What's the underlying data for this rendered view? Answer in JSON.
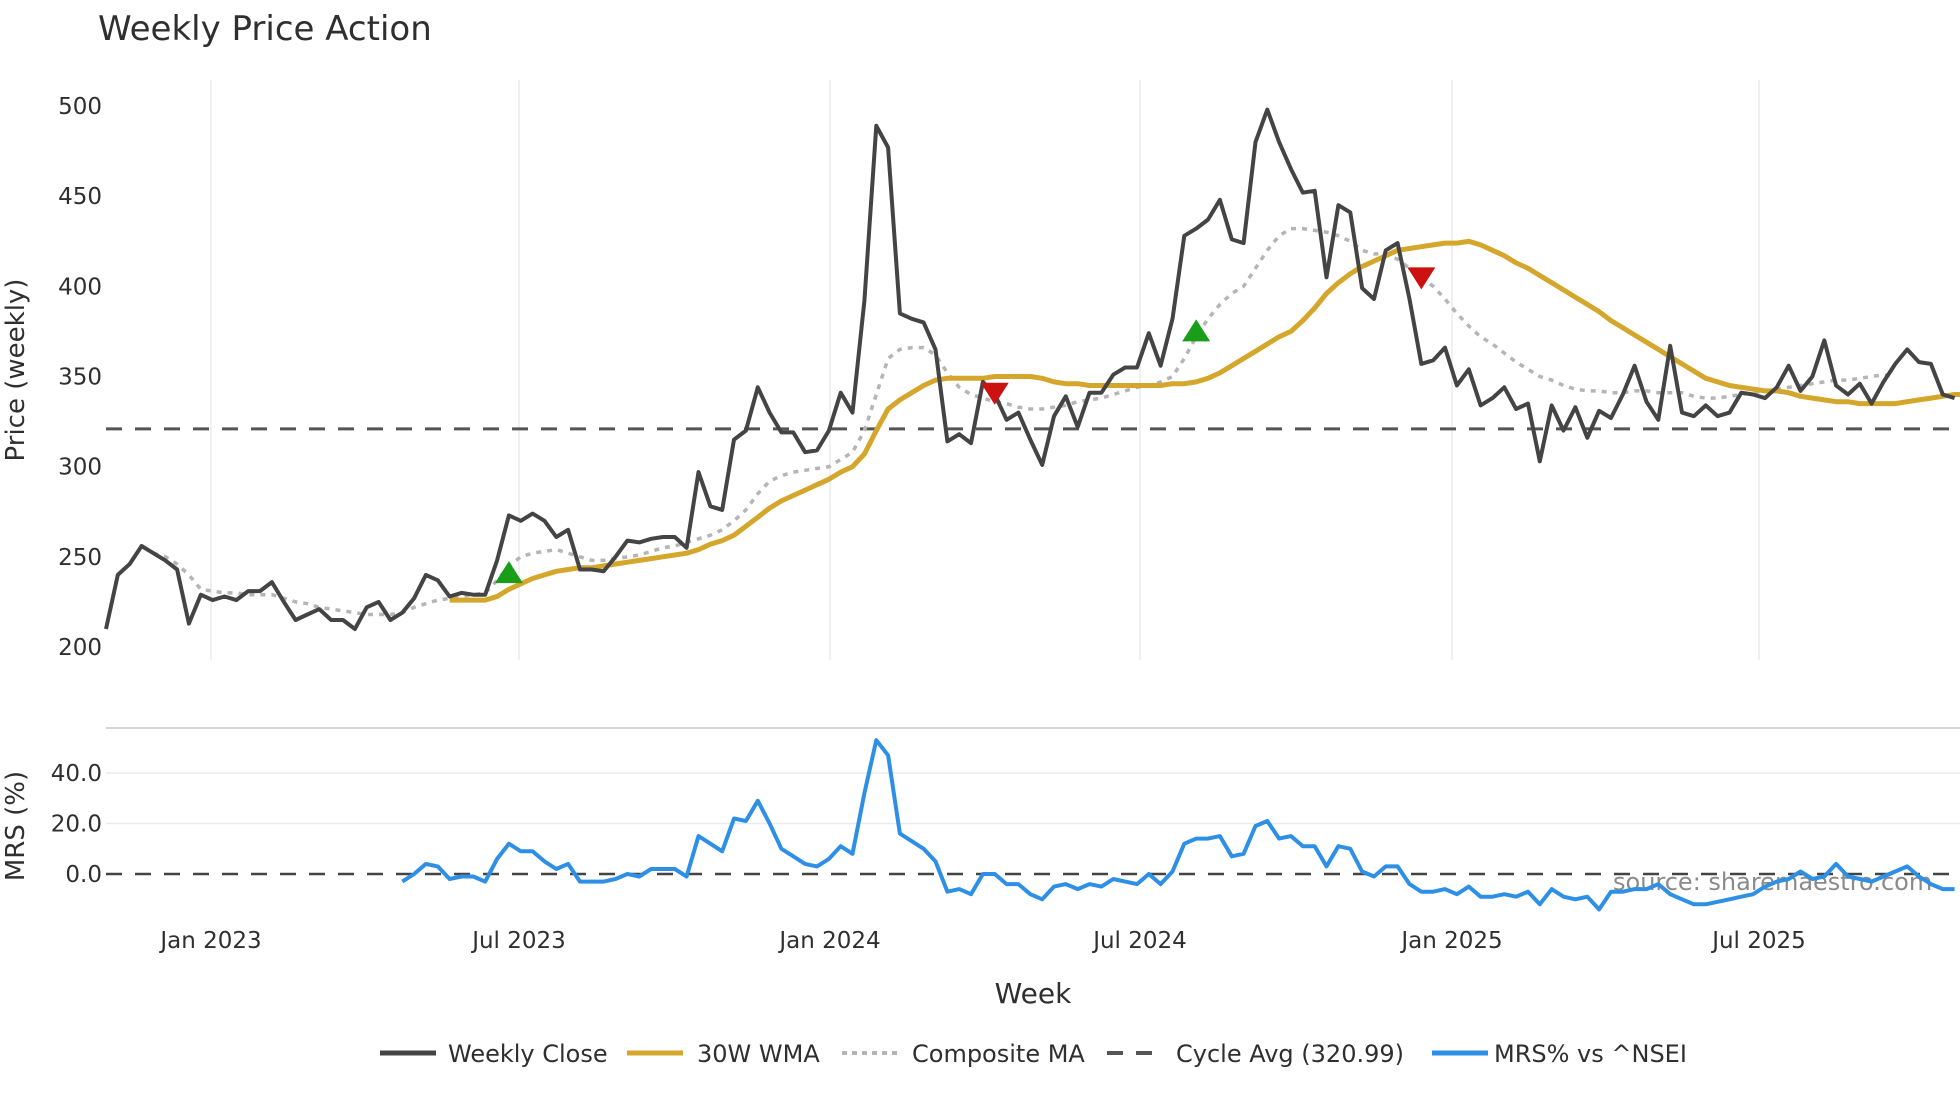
{
  "title": "Weekly Price Action",
  "source": "source: sharemaestro.com",
  "legend": [
    {
      "label": "Weekly Close",
      "color": "#444444",
      "style": "solid"
    },
    {
      "label": "30W WMA",
      "color": "#D4A72C",
      "style": "solid"
    },
    {
      "label": "Composite MA",
      "color": "#b5b5b5",
      "style": "dotted"
    },
    {
      "label": "Cycle Avg (320.99)",
      "color": "#555555",
      "style": "dashed"
    },
    {
      "label": "MRS% vs ^NSEI",
      "color": "#2E8FE6",
      "style": "solid"
    }
  ],
  "colors": {
    "close": "#444444",
    "wma": "#D4A72C",
    "composite": "#b5b5b5",
    "cycle": "#555555",
    "mrs": "#2E8FE6",
    "buy_marker": "#1a9e1a",
    "sell_marker": "#cc1111",
    "grid": "#e8ecf1"
  },
  "chart_data": [
    {
      "type": "line",
      "title": "Weekly Price Action",
      "xlabel": "Week",
      "ylabel": "Price (weekly)",
      "ylim": [
        195,
        515
      ],
      "yticks": [
        200,
        250,
        300,
        350,
        400,
        450,
        500
      ],
      "xtick_labels": [
        "Jan 2023",
        "Jul 2023",
        "Jan 2024",
        "Jul 2024",
        "Jan 2025",
        "Jul 2025"
      ],
      "grid": "vertical",
      "legend_position": "bottom",
      "cycle_avg": 320.99,
      "series": [
        {
          "name": "Weekly Close",
          "values": [
            210,
            240,
            246,
            256,
            252,
            248,
            243,
            213,
            229,
            226,
            228,
            226,
            231,
            231,
            236,
            225,
            215,
            218,
            221,
            215,
            215,
            210,
            222,
            225,
            215,
            219,
            227,
            240,
            237,
            228,
            230,
            229,
            229,
            248,
            273,
            270,
            274,
            270,
            261,
            265,
            243,
            243,
            242,
            250,
            259,
            258,
            260,
            261,
            261,
            255,
            297,
            278,
            276,
            315,
            320,
            344,
            330,
            319,
            319,
            308,
            309,
            320,
            341,
            330,
            392,
            489,
            477,
            385,
            382,
            380,
            365,
            314,
            318,
            313,
            347,
            340,
            326,
            330,
            315,
            301,
            328,
            339,
            322,
            341,
            341,
            351,
            355,
            355,
            374,
            356,
            382,
            428,
            432,
            437,
            448,
            426,
            424,
            480,
            498,
            480,
            465,
            452,
            453,
            405,
            445,
            441,
            399,
            393,
            420,
            424,
            393,
            357,
            359,
            366,
            345,
            354,
            334,
            338,
            344,
            332,
            335,
            303,
            334,
            320,
            333,
            316,
            331,
            327,
            340,
            356,
            336,
            326,
            367,
            330,
            328,
            334,
            328,
            330,
            341,
            340,
            338,
            344,
            356,
            342,
            350,
            370,
            345,
            340,
            346,
            335,
            347,
            357,
            365,
            358,
            357,
            340,
            338
          ]
        },
        {
          "name": "30W WMA",
          "start_index": 29,
          "values": [
            226,
            226,
            226,
            226,
            228,
            232,
            235,
            238,
            240,
            242,
            243,
            244,
            244,
            245,
            246,
            247,
            248,
            249,
            250,
            251,
            252,
            254,
            257,
            259,
            262,
            267,
            272,
            277,
            281,
            284,
            287,
            290,
            293,
            297,
            300,
            307,
            320,
            332,
            337,
            341,
            345,
            348,
            349,
            349,
            349,
            349,
            350,
            350,
            350,
            350,
            349,
            347,
            346,
            346,
            345,
            345,
            345,
            345,
            345,
            345,
            345,
            346,
            346,
            347,
            349,
            352,
            356,
            360,
            364,
            368,
            372,
            375,
            381,
            388,
            396,
            402,
            407,
            411,
            414,
            417,
            420,
            421,
            422,
            423,
            424,
            424,
            425,
            423,
            420,
            417,
            413,
            410,
            406,
            402,
            398,
            394,
            390,
            386,
            381,
            377,
            373,
            369,
            365,
            361,
            357,
            353,
            349,
            347,
            345,
            344,
            343,
            342,
            342,
            341,
            339,
            338,
            337,
            336,
            336,
            335,
            335,
            335,
            335,
            336,
            337,
            338,
            339,
            340,
            340,
            341,
            341,
            342,
            342,
            342,
            343,
            345,
            346,
            347,
            347,
            347
          ]
        },
        {
          "name": "Composite MA",
          "start_index": 4,
          "values": [
            252,
            250,
            246,
            240,
            232,
            231,
            230,
            230,
            229,
            229,
            229,
            227,
            225,
            224,
            222,
            221,
            220,
            219,
            218,
            218,
            218,
            219,
            222,
            224,
            226,
            227,
            228,
            229,
            230,
            237,
            245,
            250,
            252,
            253,
            254,
            252,
            250,
            248,
            248,
            249,
            250,
            251,
            253,
            255,
            256,
            258,
            260,
            262,
            265,
            270,
            276,
            285,
            292,
            295,
            297,
            298,
            299,
            300,
            304,
            308,
            320,
            340,
            360,
            365,
            366,
            366,
            362,
            352,
            344,
            340,
            338,
            336,
            335,
            333,
            332,
            332,
            333,
            334,
            336,
            337,
            338,
            340,
            342,
            344,
            345,
            347,
            350,
            360,
            372,
            382,
            390,
            396,
            400,
            410,
            420,
            428,
            432,
            432,
            431,
            430,
            428,
            425,
            420,
            418,
            418,
            415,
            410,
            405,
            400,
            393,
            385,
            378,
            372,
            368,
            363,
            358,
            354,
            350,
            348,
            345,
            343,
            342,
            342,
            341,
            341,
            342,
            342,
            341,
            341,
            341,
            339,
            338,
            338,
            339,
            340,
            341,
            342,
            343,
            344,
            345,
            346,
            347,
            348,
            348,
            349,
            350,
            351,
            350
          ]
        },
        {
          "name": "Cycle Avg (320.99)",
          "values": [
            320.99
          ]
        }
      ],
      "markers": [
        {
          "type": "buy",
          "shape": "triangle-up",
          "index": 34,
          "value": 241
        },
        {
          "type": "sell",
          "shape": "triangle-down",
          "index": 75,
          "value": 341
        },
        {
          "type": "buy",
          "shape": "triangle-up",
          "index": 92,
          "value": 375
        },
        {
          "type": "sell",
          "shape": "triangle-down",
          "index": 111,
          "value": 405
        }
      ]
    },
    {
      "type": "line",
      "title": "",
      "xlabel": "Week",
      "ylabel": "MRS (%)",
      "ylim": [
        -22,
        58
      ],
      "yticks": [
        0.0,
        20.0,
        40.0
      ],
      "ytick_labels": [
        "0.0",
        "20.0",
        "40.0"
      ],
      "zero_line": 0.0,
      "series": [
        {
          "name": "MRS% vs ^NSEI",
          "start_index": 25,
          "values": [
            -3,
            0,
            4,
            3,
            -2,
            -1,
            -1,
            -3,
            6,
            12,
            9,
            9,
            5,
            2,
            4,
            -3,
            -3,
            -3,
            -2,
            0,
            -1,
            2,
            2,
            2,
            -1,
            15,
            12,
            9,
            22,
            21,
            29,
            20,
            10,
            7,
            4,
            3,
            6,
            11,
            8,
            32,
            53,
            47,
            16,
            13,
            10,
            5,
            -7,
            -6,
            -8,
            0,
            0,
            -4,
            -4,
            -8,
            -10,
            -5,
            -4,
            -6,
            -4,
            -5,
            -2,
            -3,
            -4,
            0,
            -4,
            1,
            12,
            14,
            14,
            15,
            7,
            8,
            19,
            21,
            14,
            15,
            11,
            11,
            3,
            11,
            10,
            1,
            -1,
            3,
            3,
            -4,
            -7,
            -7,
            -6,
            -8,
            -5,
            -9,
            -9,
            -8,
            -9,
            -7,
            -12,
            -6,
            -9,
            -10,
            -9,
            -14,
            -7,
            -7,
            -6,
            -6,
            -4,
            -8,
            -10,
            -12,
            -12,
            -11,
            -10,
            -9,
            -8,
            -5,
            -3,
            -2,
            1,
            -2,
            -1,
            4,
            -1,
            -2,
            -3,
            -1,
            1,
            3,
            -1,
            -4,
            -6,
            -6
          ]
        }
      ]
    }
  ]
}
